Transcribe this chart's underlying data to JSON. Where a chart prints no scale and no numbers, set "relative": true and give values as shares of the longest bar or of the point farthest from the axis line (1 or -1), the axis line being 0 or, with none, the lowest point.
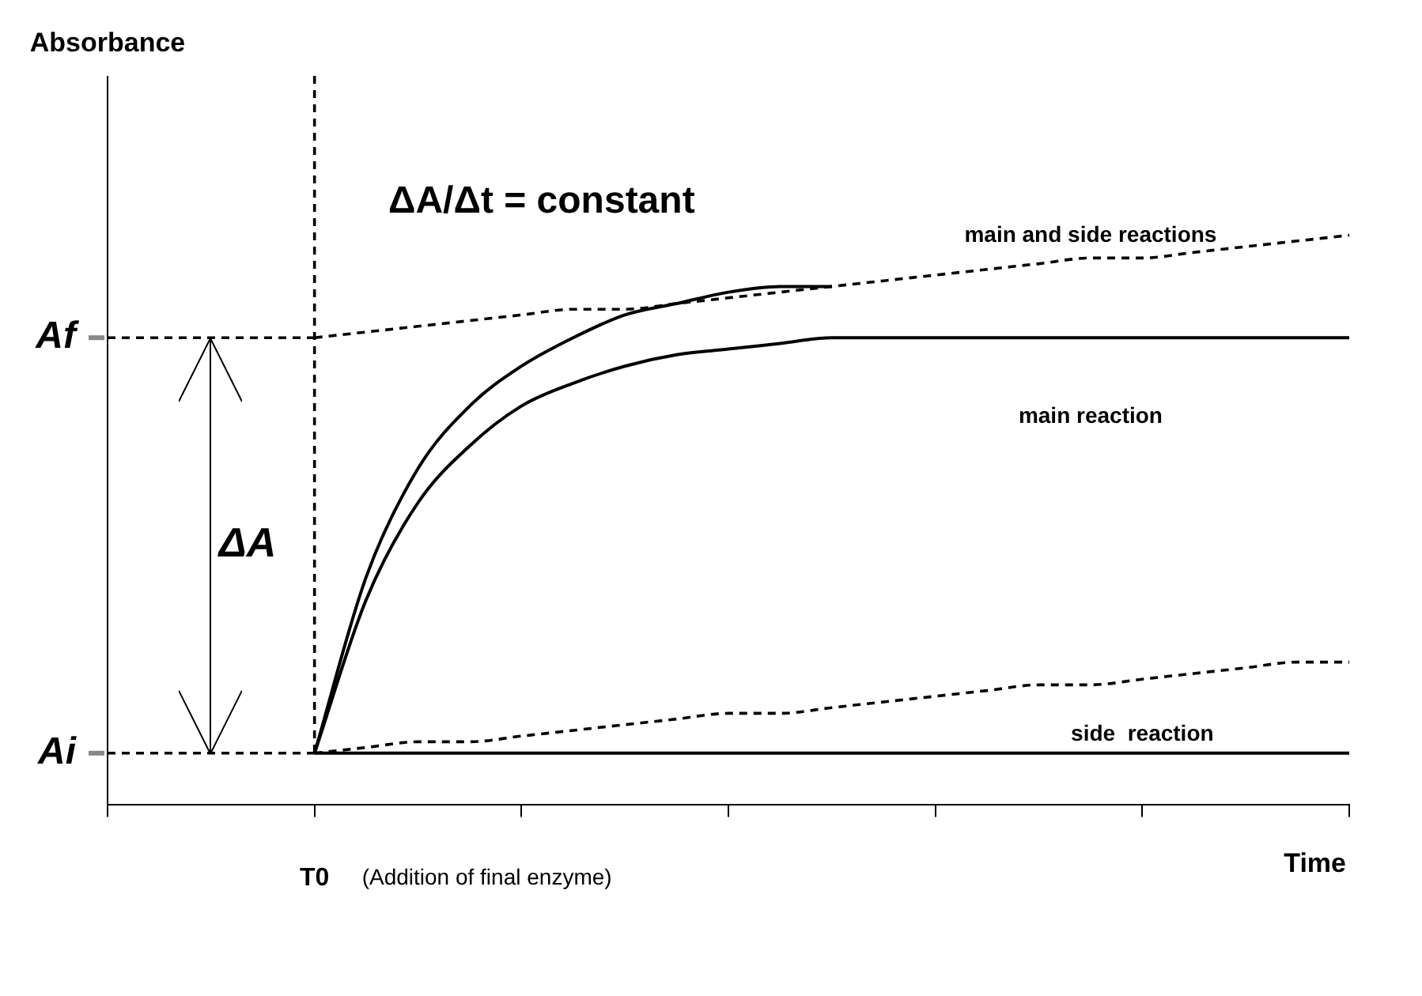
{
  "chart_data": {
    "type": "line",
    "relative": true,
    "xlabel": "Time",
    "categories": [
      null,
      null,
      null,
      null,
      null,
      null,
      null,
      null,
      null,
      null,
      null,
      null,
      null,
      null,
      null,
      null,
      null,
      null,
      null,
      null,
      null,
      null,
      null,
      null,
      null
    ],
    "series": [
      {
        "color": "#000000",
        "line_style": "dashed",
        "values": [
          0.82,
          0.82,
          0.82,
          0.82,
          0.82,
          null,
          null,
          null,
          null,
          null,
          null,
          null,
          null,
          null,
          null,
          null,
          null,
          null,
          null,
          null,
          null,
          null,
          null,
          null,
          null
        ]
      },
      {
        "color": "#000000",
        "line_style": "dashed",
        "values": [
          0.09,
          0.09,
          0.09,
          0.09,
          0.09,
          null,
          null,
          null,
          null,
          null,
          null,
          null,
          null,
          null,
          null,
          null,
          null,
          null,
          null,
          null,
          null,
          null,
          null,
          null,
          null
        ]
      },
      {
        "color": "#000000",
        "line_style": "solid",
        "values": [
          null,
          null,
          null,
          null,
          0.09,
          0.4,
          0.59,
          0.7,
          0.77,
          0.82,
          0.86,
          0.88,
          0.9,
          0.91,
          0.91,
          null,
          null,
          null,
          null,
          null,
          null,
          null,
          null,
          null,
          null
        ]
      },
      {
        "name": "main and side reactions",
        "color": "#000000",
        "line_style": "dashed",
        "values": [
          null,
          null,
          null,
          null,
          0.82,
          0.83,
          0.84,
          0.85,
          0.86,
          0.87,
          0.87,
          0.88,
          0.89,
          0.9,
          0.91,
          0.92,
          0.93,
          0.94,
          0.95,
          0.96,
          0.96,
          0.97,
          0.98,
          0.99,
          1
        ]
      },
      {
        "name": "main reaction",
        "color": "#000000",
        "line_style": "solid",
        "values": [
          null,
          null,
          null,
          null,
          0.09,
          0.36,
          0.53,
          0.63,
          0.7,
          0.74,
          0.77,
          0.79,
          0.8,
          0.81,
          0.82,
          0.82,
          0.82,
          0.82,
          0.82,
          0.82,
          0.82,
          0.82,
          0.82,
          0.82,
          0.82
        ]
      },
      {
        "name": "side  reaction",
        "color": "#000000",
        "line_style": "dashed",
        "values": [
          null,
          null,
          null,
          null,
          0.09,
          0.1,
          0.11,
          0.11,
          0.12,
          0.13,
          0.14,
          0.15,
          0.16,
          0.16,
          0.17,
          0.18,
          0.19,
          0.2,
          0.21,
          0.21,
          0.22,
          0.23,
          0.24,
          0.25,
          0.25
        ]
      },
      {
        "color": "#000000",
        "line_style": "solid",
        "values": [
          null,
          null,
          null,
          null,
          0.09,
          0.09,
          0.09,
          0.09,
          0.09,
          0.09,
          0.09,
          0.09,
          0.09,
          0.09,
          0.09,
          0.09,
          0.09,
          0.09,
          0.09,
          0.09,
          0.09,
          0.09,
          0.09,
          0.09,
          0.09
        ]
      }
    ],
    "annotations": [
      "ΔA/Δt = constant",
      "ΔA",
      "Af",
      "Ai",
      "(Addition of final enzyme)",
      "T0",
      "Absorbance"
    ],
    "legend": false,
    "grid": false,
    "marker": "none"
  }
}
